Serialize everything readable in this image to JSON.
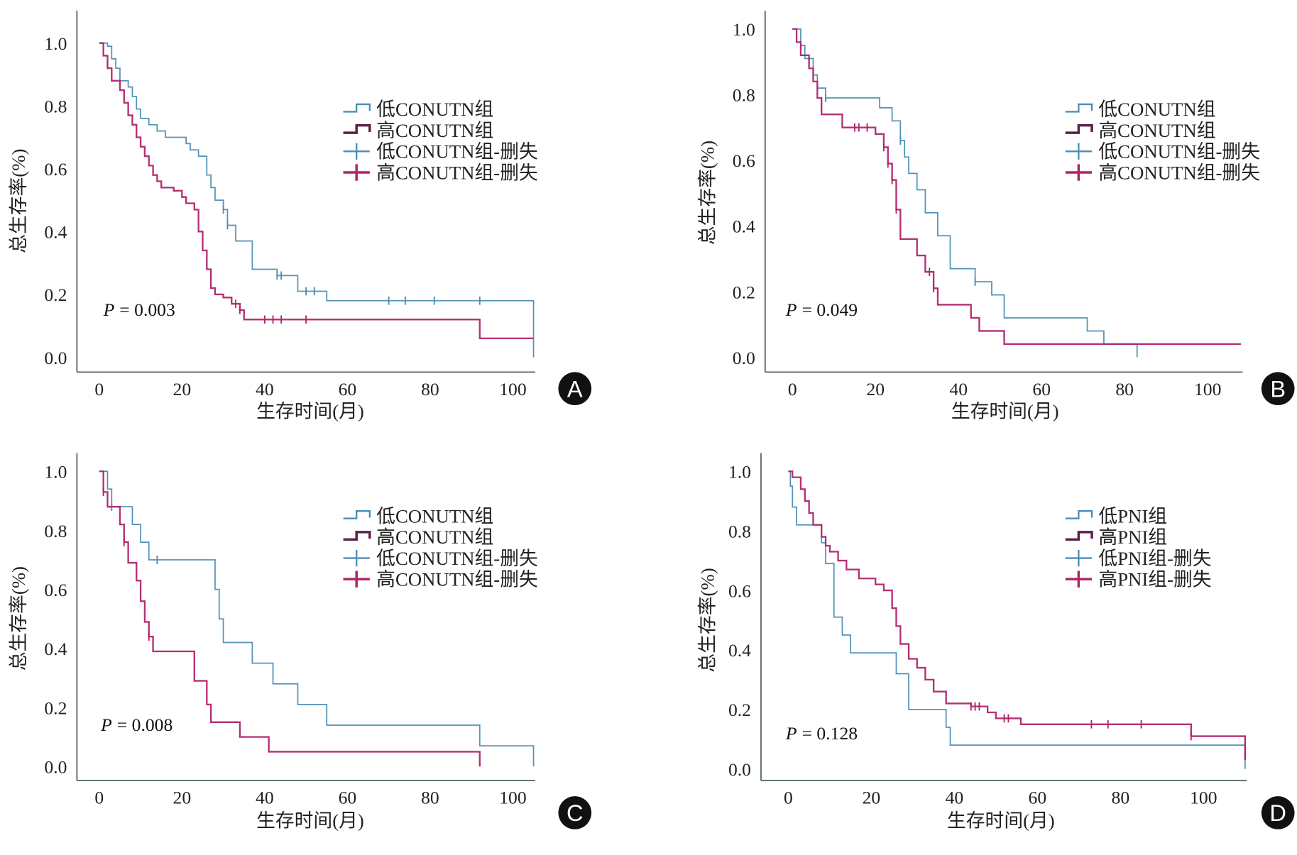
{
  "colors": {
    "low": "#4a8db5",
    "high": "#b0246a",
    "high_legend": "#5e1f4a",
    "axis": "#5a6a70"
  },
  "chart_data": [
    {
      "type": "line",
      "panel_label": "A",
      "ylabel": "总生存率(%)",
      "xlabel": "生存时间(月)",
      "xlim": [
        0,
        105
      ],
      "ylim": [
        0,
        1.0
      ],
      "xticks": [
        "0",
        "20",
        "40",
        "60",
        "80",
        "100"
      ],
      "yticks": [
        "0.0",
        "0.2",
        "0.4",
        "0.6",
        "0.8",
        "1.0"
      ],
      "p_label": "P",
      "p_value": "= 0.003",
      "legend": [
        "低CONUTN组",
        "高CONUTN组",
        "低CONUTN组-删失",
        "高CONUTN组-删失"
      ],
      "legend_placement": "top-right",
      "series": [
        {
          "name": "低CONUTN组",
          "group": "low",
          "steps": [
            [
              0,
              1
            ],
            [
              2,
              0.99
            ],
            [
              3,
              0.95
            ],
            [
              4,
              0.92
            ],
            [
              5,
              0.88
            ],
            [
              7,
              0.86
            ],
            [
              8,
              0.83
            ],
            [
              9,
              0.79
            ],
            [
              10,
              0.76
            ],
            [
              12,
              0.74
            ],
            [
              14,
              0.72
            ],
            [
              16,
              0.7
            ],
            [
              21,
              0.68
            ],
            [
              22,
              0.66
            ],
            [
              24,
              0.64
            ],
            [
              26,
              0.58
            ],
            [
              27,
              0.54
            ],
            [
              28,
              0.5
            ],
            [
              30,
              0.47
            ],
            [
              31,
              0.42
            ],
            [
              33,
              0.37
            ],
            [
              37,
              0.28
            ],
            [
              43,
              0.26
            ],
            [
              48,
              0.21
            ],
            [
              55,
              0.18
            ],
            [
              105,
              0.0
            ]
          ],
          "end": 105,
          "censored": [
            30,
            31,
            43,
            44,
            50,
            52,
            70,
            74,
            81,
            92
          ]
        },
        {
          "name": "高CONUTN组",
          "group": "high",
          "steps": [
            [
              0,
              1
            ],
            [
              1,
              0.96
            ],
            [
              2,
              0.92
            ],
            [
              3,
              0.88
            ],
            [
              5,
              0.85
            ],
            [
              6,
              0.81
            ],
            [
              7,
              0.77
            ],
            [
              8,
              0.74
            ],
            [
              9,
              0.7
            ],
            [
              10,
              0.67
            ],
            [
              11,
              0.64
            ],
            [
              12,
              0.61
            ],
            [
              13,
              0.58
            ],
            [
              14,
              0.56
            ],
            [
              15,
              0.54
            ],
            [
              18,
              0.53
            ],
            [
              20,
              0.51
            ],
            [
              21,
              0.49
            ],
            [
              23,
              0.47
            ],
            [
              24,
              0.4
            ],
            [
              25,
              0.34
            ],
            [
              26,
              0.28
            ],
            [
              27,
              0.22
            ],
            [
              28,
              0.2
            ],
            [
              30,
              0.19
            ],
            [
              32,
              0.17
            ],
            [
              34,
              0.15
            ],
            [
              35,
              0.12
            ],
            [
              92,
              0.06
            ]
          ],
          "end": 105,
          "censored": [
            33,
            34,
            40,
            42,
            44,
            50
          ]
        }
      ]
    },
    {
      "type": "line",
      "panel_label": "B",
      "ylabel": "总生存率(%)",
      "xlabel": "生存时间(月)",
      "xlim": [
        0,
        108
      ],
      "ylim": [
        0,
        1.0
      ],
      "xticks": [
        "0",
        "20",
        "40",
        "60",
        "80",
        "100"
      ],
      "yticks": [
        "0.0",
        "0.2",
        "0.4",
        "0.6",
        "0.8",
        "1.0"
      ],
      "p_label": "P",
      "p_value": "= 0.049",
      "legend": [
        "低CONUTN组",
        "高CONUTN组",
        "低CONUTN组-删失",
        "高CONUTN组-删失"
      ],
      "legend_placement": "top-right",
      "series": [
        {
          "name": "低CONUTN组",
          "group": "low",
          "steps": [
            [
              0,
              1
            ],
            [
              2,
              0.95
            ],
            [
              3,
              0.91
            ],
            [
              5,
              0.86
            ],
            [
              6,
              0.82
            ],
            [
              8,
              0.79
            ],
            [
              21,
              0.76
            ],
            [
              24,
              0.72
            ],
            [
              26,
              0.66
            ],
            [
              27,
              0.61
            ],
            [
              28,
              0.56
            ],
            [
              30,
              0.51
            ],
            [
              32,
              0.44
            ],
            [
              35,
              0.37
            ],
            [
              38,
              0.27
            ],
            [
              44,
              0.23
            ],
            [
              48,
              0.19
            ],
            [
              51,
              0.12
            ],
            [
              71,
              0.08
            ],
            [
              75,
              0.04
            ],
            [
              83,
              0.0
            ]
          ],
          "end": 83,
          "censored": [
            2,
            8,
            26,
            44
          ]
        },
        {
          "name": "高CONUTN组",
          "group": "high",
          "steps": [
            [
              0,
              1
            ],
            [
              1,
              0.96
            ],
            [
              2,
              0.92
            ],
            [
              4,
              0.88
            ],
            [
              5,
              0.84
            ],
            [
              6,
              0.79
            ],
            [
              7,
              0.74
            ],
            [
              12,
              0.7
            ],
            [
              20,
              0.68
            ],
            [
              22,
              0.64
            ],
            [
              23,
              0.59
            ],
            [
              24,
              0.54
            ],
            [
              25,
              0.45
            ],
            [
              26,
              0.36
            ],
            [
              30,
              0.31
            ],
            [
              32,
              0.26
            ],
            [
              34,
              0.21
            ],
            [
              35,
              0.16
            ],
            [
              43,
              0.12
            ],
            [
              45,
              0.08
            ],
            [
              51,
              0.04
            ]
          ],
          "end": 108,
          "censored": [
            15,
            16,
            18,
            22,
            23,
            24,
            25,
            33,
            34
          ]
        }
      ]
    },
    {
      "type": "line",
      "panel_label": "C",
      "ylabel": "总生存率(%)",
      "xlabel": "生存时间(月)",
      "xlim": [
        0,
        105
      ],
      "ylim": [
        0,
        1.0
      ],
      "xticks": [
        "0",
        "20",
        "40",
        "60",
        "80",
        "100"
      ],
      "yticks": [
        "0.0",
        "0.2",
        "0.4",
        "0.6",
        "0.8",
        "1.0"
      ],
      "p_label": "P",
      "p_value": "= 0.008",
      "legend": [
        "低CONUTN组",
        "高CONUTN组",
        "低CONUTN组-删失",
        "高CONUTN组-删失"
      ],
      "legend_placement": "top-right",
      "series": [
        {
          "name": "低CONUTN组",
          "group": "low",
          "steps": [
            [
              0,
              1
            ],
            [
              2,
              0.94
            ],
            [
              3,
              0.88
            ],
            [
              8,
              0.82
            ],
            [
              10,
              0.76
            ],
            [
              12,
              0.7
            ],
            [
              28,
              0.6
            ],
            [
              29,
              0.5
            ],
            [
              30,
              0.42
            ],
            [
              37,
              0.35
            ],
            [
              42,
              0.28
            ],
            [
              48,
              0.21
            ],
            [
              55,
              0.14
            ],
            [
              92,
              0.07
            ],
            [
              105,
              0.0
            ]
          ],
          "end": 105,
          "censored": [
            3,
            14
          ]
        },
        {
          "name": "高CONUTN组",
          "group": "high",
          "steps": [
            [
              0,
              1
            ],
            [
              1,
              0.93
            ],
            [
              2,
              0.88
            ],
            [
              5,
              0.82
            ],
            [
              6,
              0.76
            ],
            [
              7,
              0.69
            ],
            [
              9,
              0.63
            ],
            [
              10,
              0.56
            ],
            [
              11,
              0.49
            ],
            [
              12,
              0.44
            ],
            [
              13,
              0.39
            ],
            [
              23,
              0.29
            ],
            [
              26,
              0.21
            ],
            [
              27,
              0.15
            ],
            [
              34,
              0.1
            ],
            [
              41,
              0.05
            ],
            [
              92,
              0.0
            ]
          ],
          "end": 92,
          "censored": [
            1,
            6,
            12
          ]
        }
      ]
    },
    {
      "type": "line",
      "panel_label": "D",
      "ylabel": "总生存率(%)",
      "xlabel": "生存时间(月)",
      "xlim": [
        0,
        110
      ],
      "ylim": [
        0,
        1.0
      ],
      "xticks": [
        "0",
        "20",
        "40",
        "60",
        "80",
        "100"
      ],
      "yticks": [
        "0.0",
        "0.2",
        "0.4",
        "0.6",
        "0.8",
        "1.0"
      ],
      "p_label": "P",
      "p_value": "= 0.128",
      "legend": [
        "低PNI组",
        "高PNI组",
        "低PNI组-删失",
        "高PNI组-删失"
      ],
      "legend_placement": "top-right",
      "series": [
        {
          "name": "低PNI组",
          "group": "low",
          "steps": [
            [
              0,
              1
            ],
            [
              0.5,
              0.95
            ],
            [
              1,
              0.88
            ],
            [
              2,
              0.82
            ],
            [
              8,
              0.76
            ],
            [
              9,
              0.69
            ],
            [
              11,
              0.51
            ],
            [
              13,
              0.45
            ],
            [
              15,
              0.39
            ],
            [
              26,
              0.32
            ],
            [
              29,
              0.2
            ],
            [
              38,
              0.14
            ],
            [
              39,
              0.08
            ],
            [
              110,
              0.0
            ]
          ],
          "end": 110,
          "censored": []
        },
        {
          "name": "高PNI组",
          "group": "high",
          "steps": [
            [
              0,
              1
            ],
            [
              1,
              0.98
            ],
            [
              3,
              0.94
            ],
            [
              4,
              0.9
            ],
            [
              5,
              0.86
            ],
            [
              6,
              0.82
            ],
            [
              8,
              0.78
            ],
            [
              9,
              0.75
            ],
            [
              10,
              0.73
            ],
            [
              12,
              0.7
            ],
            [
              14,
              0.67
            ],
            [
              17,
              0.64
            ],
            [
              21,
              0.62
            ],
            [
              23,
              0.6
            ],
            [
              25,
              0.54
            ],
            [
              26,
              0.48
            ],
            [
              27,
              0.42
            ],
            [
              29,
              0.37
            ],
            [
              31,
              0.34
            ],
            [
              33,
              0.3
            ],
            [
              35,
              0.26
            ],
            [
              38,
              0.22
            ],
            [
              44,
              0.21
            ],
            [
              48,
              0.19
            ],
            [
              50,
              0.17
            ],
            [
              56,
              0.15
            ],
            [
              97,
              0.11
            ],
            [
              110,
              0.03
            ]
          ],
          "end": 110,
          "censored": [
            44,
            45,
            46,
            52,
            53,
            73,
            77,
            85,
            97
          ]
        }
      ]
    }
  ]
}
